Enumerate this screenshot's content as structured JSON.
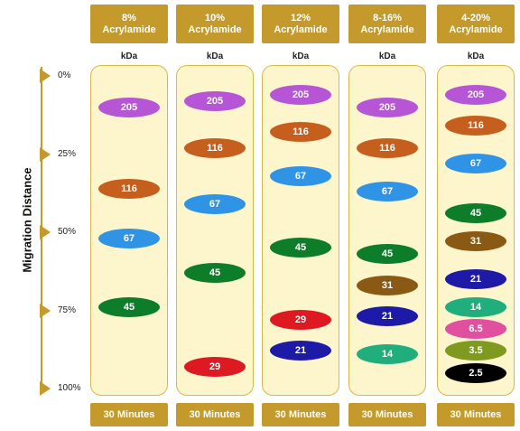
{
  "axis": {
    "title": "Migration Distance",
    "ticks": [
      {
        "label": "0%",
        "value": 0
      },
      {
        "label": "25%",
        "value": 25
      },
      {
        "label": "50%",
        "value": 50
      },
      {
        "label": "75%",
        "value": 75
      },
      {
        "label": "100%",
        "value": 100
      }
    ]
  },
  "lanes": [
    {
      "header": [
        "8%",
        "Acrylamide"
      ],
      "unit": "kDa",
      "footer": "30 Minutes",
      "bands": [
        {
          "label": "205",
          "migration": 10,
          "color": "#b655d6"
        },
        {
          "label": "116",
          "migration": 36,
          "color": "#c65e1e"
        },
        {
          "label": "67",
          "migration": 52,
          "color": "#2f93e6"
        },
        {
          "label": "45",
          "migration": 74,
          "color": "#0d7d2a"
        }
      ]
    },
    {
      "header": [
        "10%",
        "Acrylamide"
      ],
      "unit": "kDa",
      "footer": "30 Minutes",
      "bands": [
        {
          "label": "205",
          "migration": 8,
          "color": "#b655d6"
        },
        {
          "label": "116",
          "migration": 23,
          "color": "#c65e1e"
        },
        {
          "label": "67",
          "migration": 41,
          "color": "#2f93e6"
        },
        {
          "label": "45",
          "migration": 63,
          "color": "#0d7d2a"
        },
        {
          "label": "29",
          "migration": 93,
          "color": "#dd1a22"
        }
      ]
    },
    {
      "header": [
        "12%",
        "Acrylamide"
      ],
      "unit": "kDa",
      "footer": "30 Minutes",
      "bands": [
        {
          "label": "205",
          "migration": 6,
          "color": "#b655d6"
        },
        {
          "label": "116",
          "migration": 18,
          "color": "#c65e1e"
        },
        {
          "label": "67",
          "migration": 32,
          "color": "#2f93e6"
        },
        {
          "label": "45",
          "migration": 55,
          "color": "#0d7d2a"
        },
        {
          "label": "29",
          "migration": 78,
          "color": "#dd1a22"
        },
        {
          "label": "21",
          "migration": 88,
          "color": "#1d1aa8"
        }
      ]
    },
    {
      "header": [
        "8-16%",
        "Acrylamide"
      ],
      "unit": "kDa",
      "footer": "30 Minutes",
      "bands": [
        {
          "label": "205",
          "migration": 10,
          "color": "#b655d6"
        },
        {
          "label": "116",
          "migration": 23,
          "color": "#c65e1e"
        },
        {
          "label": "67",
          "migration": 37,
          "color": "#2f93e6"
        },
        {
          "label": "45",
          "migration": 57,
          "color": "#0d7d2a"
        },
        {
          "label": "31",
          "migration": 67,
          "color": "#8a5a14"
        },
        {
          "label": "21",
          "migration": 77,
          "color": "#1d1aa8"
        },
        {
          "label": "14",
          "migration": 89,
          "color": "#1fae7c"
        }
      ]
    },
    {
      "header": [
        "4-20%",
        "Acrylamide"
      ],
      "unit": "kDa",
      "footer": "30 Minutes",
      "bands": [
        {
          "label": "205",
          "migration": 6,
          "color": "#b655d6"
        },
        {
          "label": "116",
          "migration": 16,
          "color": "#c65e1e"
        },
        {
          "label": "67",
          "migration": 28,
          "color": "#2f93e6"
        },
        {
          "label": "45",
          "migration": 44,
          "color": "#0d7d2a"
        },
        {
          "label": "31",
          "migration": 53,
          "color": "#8a5a14"
        },
        {
          "label": "21",
          "migration": 65,
          "color": "#1d1aa8"
        },
        {
          "label": "14",
          "migration": 74,
          "color": "#1fae7c"
        },
        {
          "label": "6.5",
          "migration": 81,
          "color": "#e0509f"
        },
        {
          "label": "3.5",
          "migration": 88,
          "color": "#7f9a1e"
        },
        {
          "label": "2.5",
          "migration": 95,
          "color": "#000000"
        }
      ]
    }
  ]
}
